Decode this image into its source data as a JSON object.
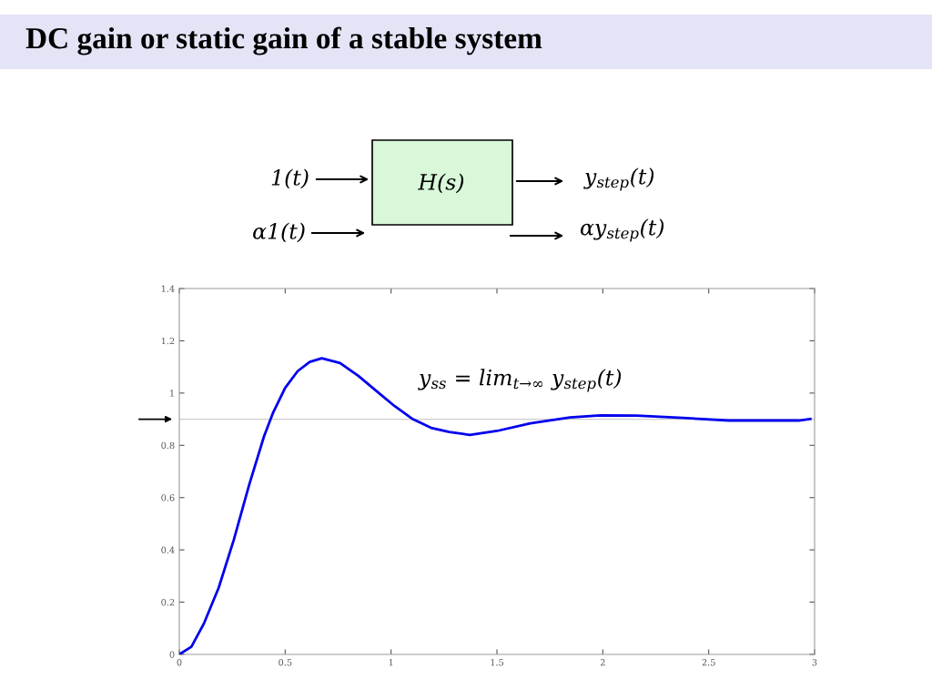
{
  "chart_data": {
    "type": "line",
    "title": "DC gain or static gain of a stable system",
    "annotations": [
      "1(t)",
      "H(s)",
      "y$_{step}$(t)",
      "α1(t)",
      "αy$_{step}$(t)",
      "y$_{ss}$ = lim$_{t→∞}$ y$_{step}$(t)"
    ],
    "series": [
      {
        "color": "#0000ee",
        "x": [
          0,
          0.057,
          0.115,
          0.186,
          0.258,
          0.33,
          0.4,
          0.444,
          0.5,
          0.559,
          0.616,
          0.673,
          0.759,
          0.845,
          0.931,
          1.017,
          1.103,
          1.189,
          1.275,
          1.372,
          1.5,
          1.658,
          1.845,
          1.989,
          2.16,
          2.378,
          2.594,
          2.925,
          2.98
        ],
        "values": [
          0,
          0.029,
          0.116,
          0.255,
          0.44,
          0.649,
          0.834,
          0.927,
          1.02,
          1.084,
          1.119,
          1.133,
          1.115,
          1.066,
          1.008,
          0.95,
          0.9,
          0.867,
          0.851,
          0.84,
          0.855,
          0.884,
          0.907,
          0.915,
          0.914,
          0.905,
          0.895,
          0.895,
          0.901
        ]
      }
    ],
    "xlim": [
      0,
      3
    ],
    "xticks": [
      0,
      0.5,
      1,
      1.5,
      2,
      2.5,
      3
    ],
    "ylim": [
      0,
      1.4
    ],
    "yticks": [
      0,
      0.2,
      0.4,
      0.6,
      0.8,
      1,
      1.2,
      1.4
    ],
    "ref_lines": [
      {
        "axis": "y",
        "value": 0.9,
        "color": "#cccccc"
      }
    ],
    "grid": false,
    "legend": false,
    "marker": "none",
    "line_style": "solid"
  }
}
